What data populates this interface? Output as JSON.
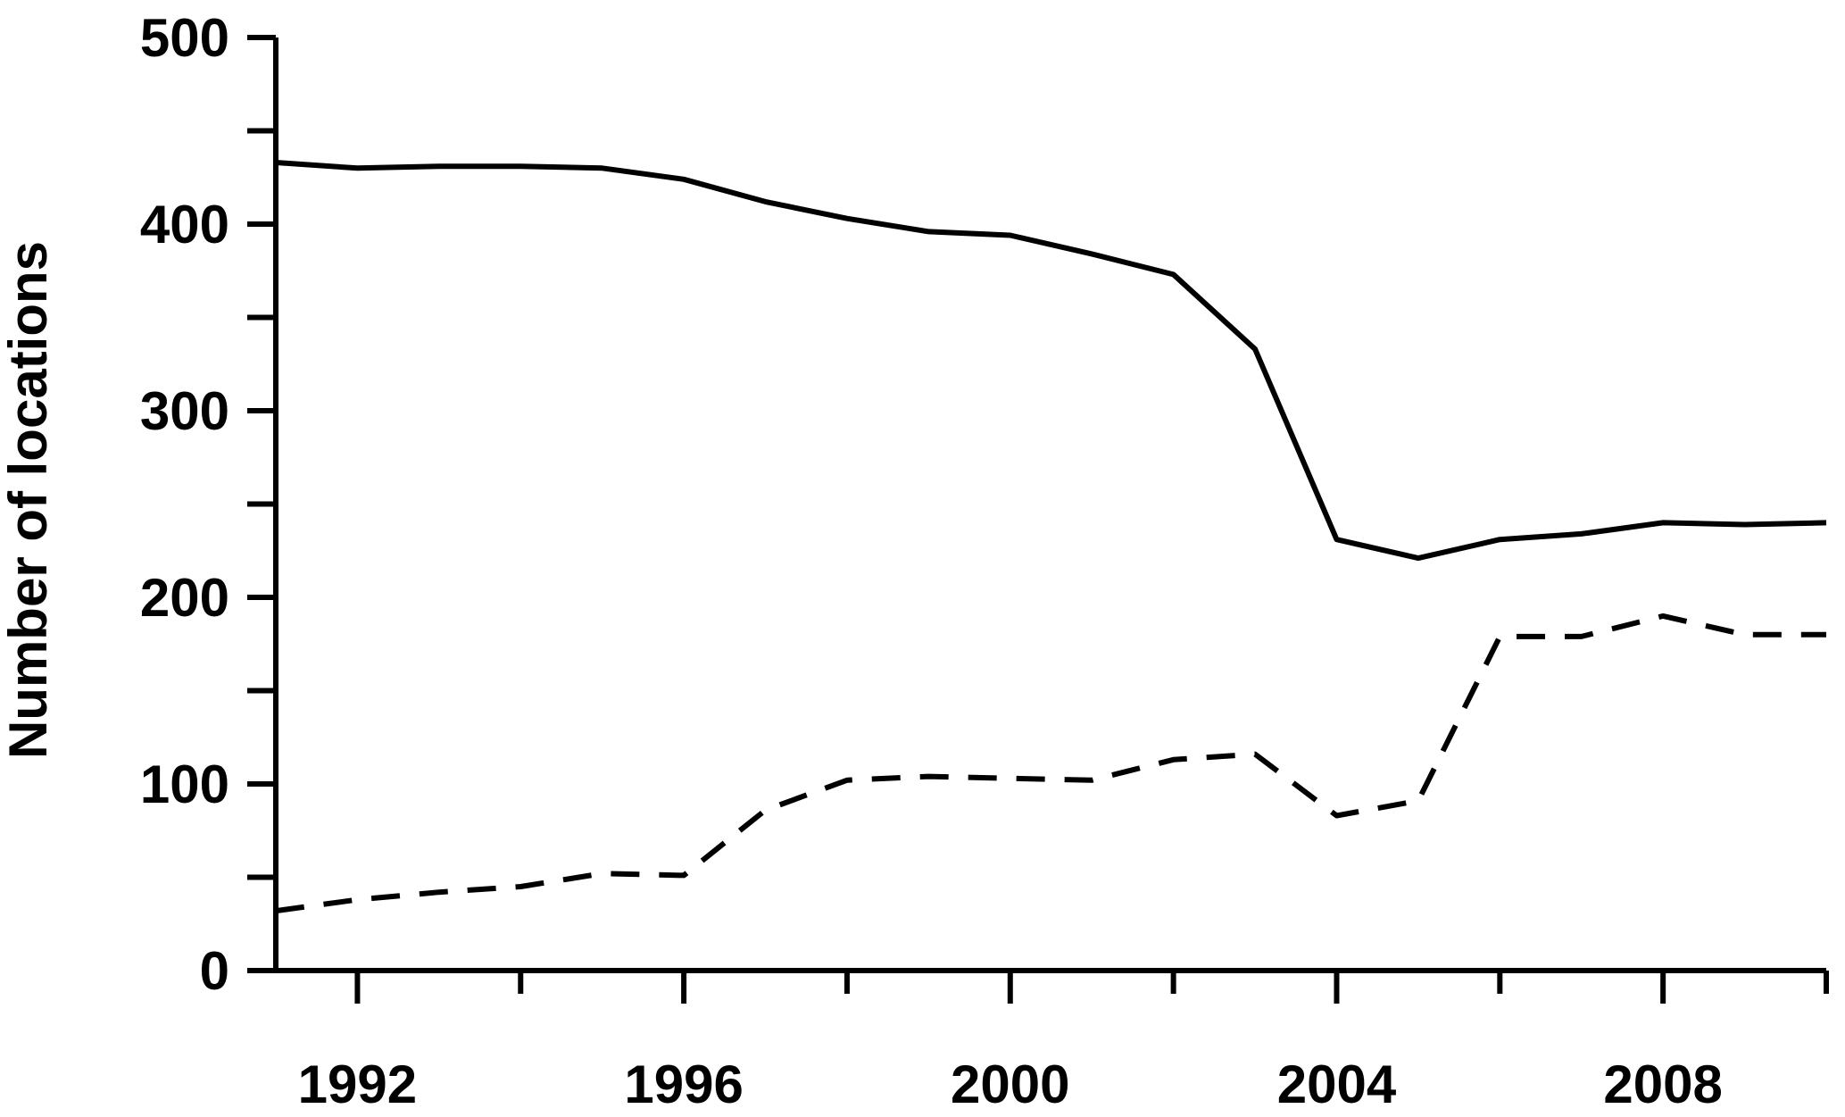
{
  "chart_data": {
    "type": "line",
    "title": "",
    "xlabel": "",
    "ylabel": "Number of locations",
    "xlim": [
      1991,
      2010
    ],
    "ylim": [
      0,
      500
    ],
    "x_ticks_major": [
      1992,
      1996,
      2000,
      2004,
      2008
    ],
    "x_ticks_minor": [
      1994,
      1998,
      2002,
      2006,
      2010
    ],
    "y_ticks_major": [
      0,
      100,
      200,
      300,
      400,
      500
    ],
    "y_ticks_minor": [
      50,
      150,
      250,
      350,
      450
    ],
    "grid": false,
    "legend": "none",
    "x": [
      1991,
      1992,
      1993,
      1994,
      1995,
      1996,
      1997,
      1998,
      1999,
      2000,
      2001,
      2002,
      2003,
      2004,
      2005,
      2006,
      2007,
      2008,
      2009,
      2010
    ],
    "series": [
      {
        "style": "solid",
        "color": "#000000",
        "values": [
          433,
          430,
          431,
          431,
          430,
          424,
          412,
          403,
          396,
          394,
          384,
          373,
          333,
          231,
          221,
          231,
          234,
          240,
          239,
          240
        ]
      },
      {
        "style": "dashed",
        "color": "#000000",
        "values": [
          32,
          38,
          42,
          45,
          52,
          51,
          86,
          102,
          104,
          103,
          102,
          113,
          116,
          83,
          91,
          179,
          179,
          190,
          180,
          180
        ]
      }
    ]
  }
}
